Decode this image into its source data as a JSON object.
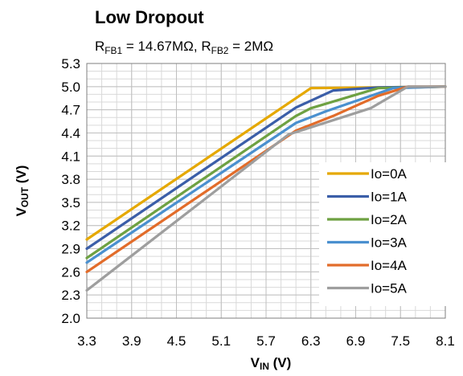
{
  "chart_data": {
    "type": "line",
    "title": "Low Dropout",
    "subtitle_parts": [
      {
        "text": "R",
        "sub": false
      },
      {
        "text": "FB1",
        "sub": true
      },
      {
        "text": " = 14.67MΩ, R",
        "sub": false
      },
      {
        "text": "FB2",
        "sub": true
      },
      {
        "text": " = 2MΩ",
        "sub": false
      }
    ],
    "xlabel_parts": [
      {
        "text": "V",
        "sub": false
      },
      {
        "text": "IN",
        "sub": true
      },
      {
        "text": " (V)",
        "sub": false
      }
    ],
    "ylabel_parts": [
      {
        "text": "V",
        "sub": false
      },
      {
        "text": "OUT",
        "sub": true
      },
      {
        "text": " (V)",
        "sub": false
      }
    ],
    "xlim": [
      3.3,
      8.1
    ],
    "ylim": [
      2.0,
      5.3
    ],
    "xticks": [
      "3.3",
      "3.9",
      "4.5",
      "5.1",
      "5.7",
      "6.3",
      "6.9",
      "7.5",
      "8.1"
    ],
    "yticks": [
      "2.0",
      "2.3",
      "2.6",
      "2.9",
      "3.2",
      "3.5",
      "3.8",
      "4.1",
      "4.4",
      "4.7",
      "5.0",
      "5.3"
    ],
    "grid": true,
    "legend_position": "bottom-right",
    "series": [
      {
        "name": "Io=0A",
        "color": "#E5A800",
        "points": [
          [
            3.3,
            3.02
          ],
          [
            6.1,
            4.85
          ],
          [
            6.3,
            4.98
          ],
          [
            8.1,
            5.0
          ]
        ]
      },
      {
        "name": "Io=1A",
        "color": "#3B5EA8",
        "points": [
          [
            3.3,
            2.9
          ],
          [
            6.1,
            4.73
          ],
          [
            6.6,
            4.95
          ],
          [
            7.2,
            4.99
          ],
          [
            8.1,
            5.0
          ]
        ]
      },
      {
        "name": "Io=2A",
        "color": "#6EA142",
        "points": [
          [
            3.3,
            2.78
          ],
          [
            6.1,
            4.62
          ],
          [
            6.3,
            4.72
          ],
          [
            7.2,
            4.98
          ],
          [
            8.1,
            5.0
          ]
        ]
      },
      {
        "name": "Io=3A",
        "color": "#4A90CF",
        "points": [
          [
            3.3,
            2.72
          ],
          [
            6.1,
            4.53
          ],
          [
            6.5,
            4.68
          ],
          [
            7.4,
            4.98
          ],
          [
            8.1,
            5.0
          ]
        ]
      },
      {
        "name": "Io=4A",
        "color": "#E26C2A",
        "points": [
          [
            3.3,
            2.6
          ],
          [
            6.1,
            4.43
          ],
          [
            6.6,
            4.62
          ],
          [
            7.2,
            4.88
          ],
          [
            7.6,
            5.0
          ],
          [
            8.1,
            5.0
          ]
        ]
      },
      {
        "name": "Io=5A",
        "color": "#9E9E9E",
        "points": [
          [
            3.3,
            2.36
          ],
          [
            6.0,
            4.38
          ],
          [
            7.1,
            4.72
          ],
          [
            7.6,
            5.0
          ],
          [
            8.1,
            5.0
          ]
        ]
      }
    ]
  }
}
